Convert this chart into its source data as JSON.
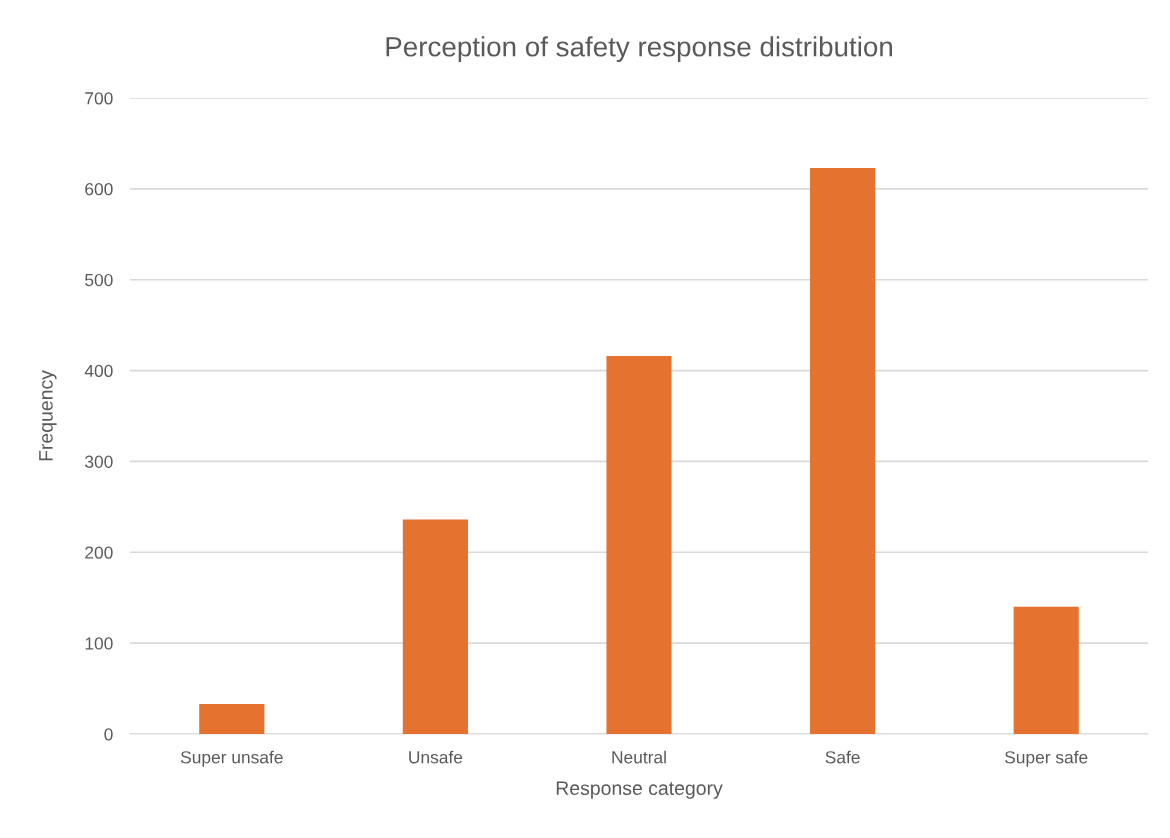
{
  "chart_data": {
    "type": "bar",
    "title": "Perception of safety response distribution",
    "xlabel": "Response category",
    "ylabel": "Frequency",
    "categories": [
      "Super unsafe",
      "Unsafe",
      "Neutral",
      "Safe",
      "Super safe"
    ],
    "values": [
      33,
      236,
      416,
      623,
      140
    ],
    "color": "#e6722f",
    "ylim": [
      0,
      700
    ],
    "yticks": [
      0,
      100,
      200,
      300,
      400,
      500,
      600,
      700
    ],
    "grid": "y",
    "legend": false
  }
}
